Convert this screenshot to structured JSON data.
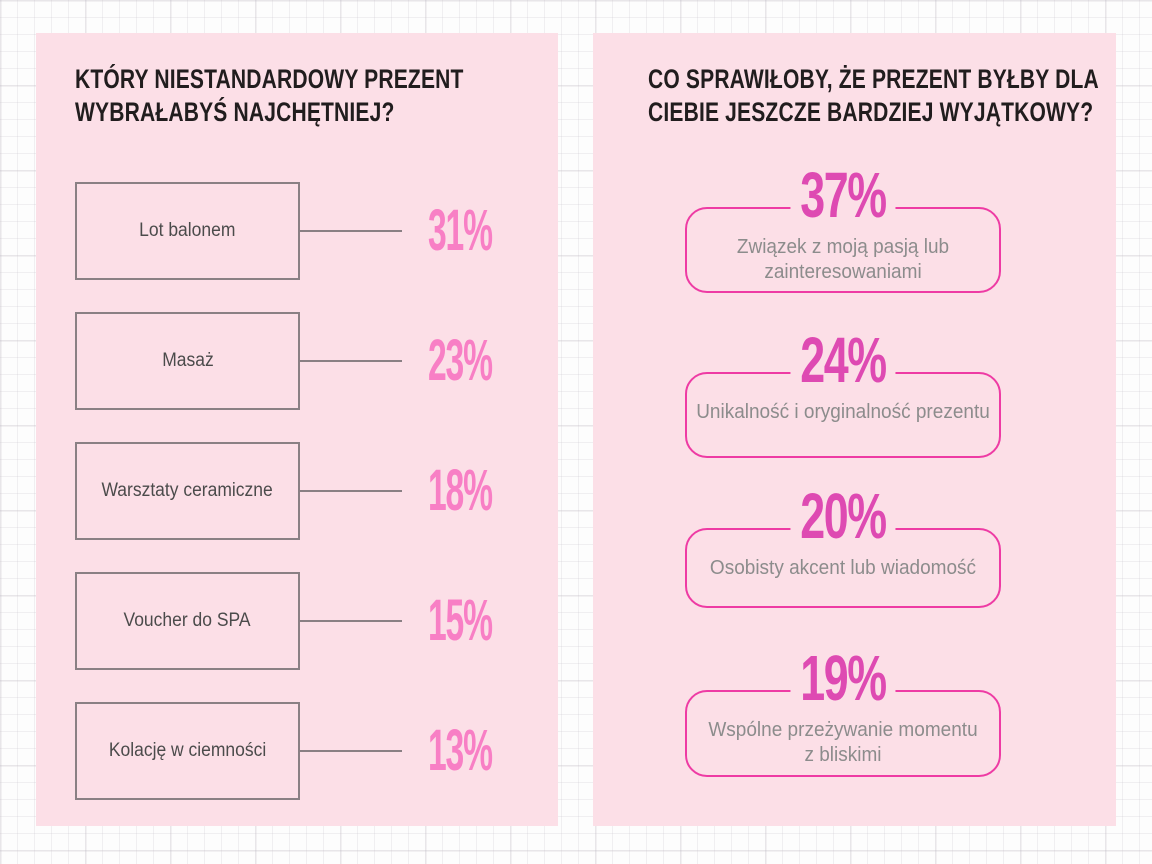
{
  "colors": {
    "panel_bg": "#fcdfe7",
    "title_text": "#211d1e",
    "label_text": "#4b4b4b",
    "subtitle_text": "#8c8c8c",
    "box_border": "#8a8084",
    "connector": "#8a8084",
    "left_percent": "#f87fc5",
    "right_percent": "#de4ab2",
    "card_border": "#ee3ba4"
  },
  "left_panel": {
    "title_lines": [
      "KTÓRY NIESTANDARDOWY PREZENT",
      "WYBRAŁABYŚ NAJCHĘTNIEJ?"
    ],
    "items": [
      {
        "label": "Lot balonem",
        "value": "31%"
      },
      {
        "label": "Masaż",
        "value": "23%"
      },
      {
        "label": "Warsztaty ceramiczne",
        "value": "18%"
      },
      {
        "label": "Voucher do SPA",
        "value": "15%"
      },
      {
        "label": "Kolację w ciemności",
        "value": "13%"
      }
    ]
  },
  "right_panel": {
    "title_lines": [
      "CO SPRAWIŁOBY, ŻE PREZENT BYŁBY DLA",
      "CIEBIE JESZCZE BARDZIEJ WYJĄTKOWY?"
    ],
    "cards": [
      {
        "value": "37%",
        "lines": [
          "Związek z moją pasją lub",
          "zainteresowaniami"
        ]
      },
      {
        "value": "24%",
        "lines": [
          "Unikalność i oryginalność prezentu"
        ]
      },
      {
        "value": "20%",
        "lines": [
          "Osobisty akcent lub wiadomość"
        ]
      },
      {
        "value": "19%",
        "lines": [
          "Wspólne przeżywanie momentu",
          "z bliskimi"
        ]
      }
    ]
  },
  "chart_data": [
    {
      "type": "bar",
      "title": "KTÓRY NIESTANDARDOWY PREZENT WYBRAŁABYŚ NAJCHĘTNIEJ?",
      "categories": [
        "Lot balonem",
        "Masaż",
        "Warsztaty ceramiczne",
        "Voucher do SPA",
        "Kolację w ciemności"
      ],
      "values": [
        31,
        23,
        18,
        15,
        13
      ],
      "unit": "%",
      "xlabel": "",
      "ylabel": "",
      "legend": false
    },
    {
      "type": "table",
      "title": "CO SPRAWIŁOBY, ŻE PREZENT BYŁBY DLA CIEBIE JESZCZE BARDZIEJ WYJĄTKOWY?",
      "categories": [
        "Związek z moją pasją lub zainteresowaniami",
        "Unikalność i oryginalność prezentu",
        "Osobisty akcent lub wiadomość",
        "Wspólne przeżywanie momentu z bliskimi"
      ],
      "values": [
        37,
        24,
        20,
        19
      ],
      "unit": "%",
      "legend": false
    }
  ]
}
